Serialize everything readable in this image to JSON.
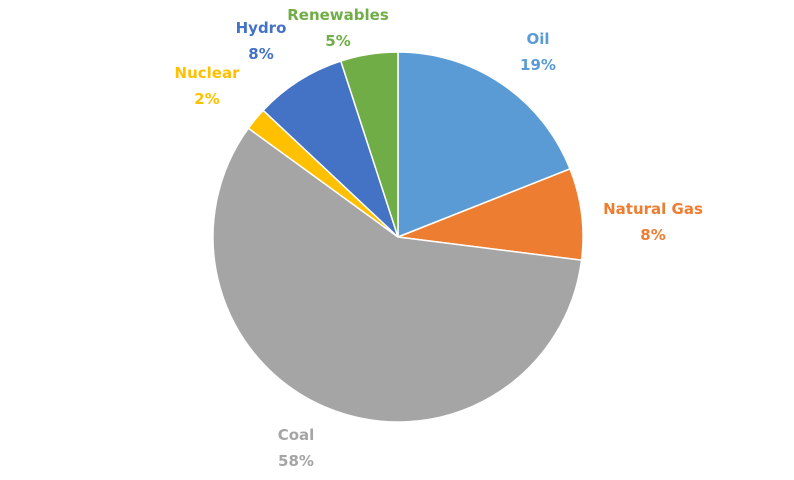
{
  "chart_data": {
    "type": "pie",
    "slices": [
      {
        "label": "Oil",
        "value": 19,
        "value_label": "19%",
        "color": "#5b9bd5"
      },
      {
        "label": "Natural Gas",
        "value": 8,
        "value_label": "8%",
        "color": "#ed7d31"
      },
      {
        "label": "Coal",
        "value": 58,
        "value_label": "58%",
        "color": "#a5a5a5"
      },
      {
        "label": "Nuclear",
        "value": 2,
        "value_label": "2%",
        "color": "#ffc000"
      },
      {
        "label": "Hydro",
        "value": 8,
        "value_label": "8%",
        "color": "#4472c4"
      },
      {
        "label": "Renewables",
        "value": 5,
        "value_label": "5%",
        "color": "#70ad47"
      }
    ],
    "start_angle_deg": 0,
    "direction": "clockwise",
    "legend": "none"
  }
}
